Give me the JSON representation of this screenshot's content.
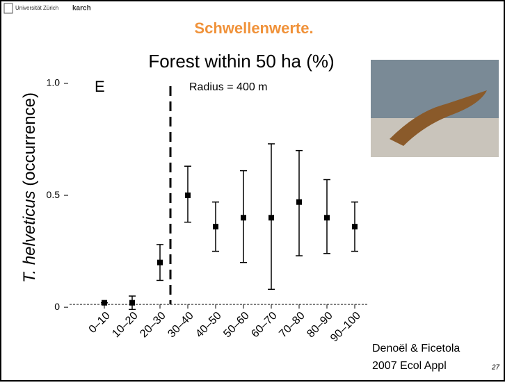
{
  "header": {
    "university": "Universität Zürich",
    "partner": "karch"
  },
  "slide_title": "Schwellenwerte.",
  "chart_data": {
    "type": "errorbar",
    "title": "Forest within 50 ha (%)",
    "panel": "E",
    "annotation": "Radius = 400 m",
    "y_label_italic": "T. helveticus",
    "y_label_rest": "(occurrence)",
    "categories": [
      "0–10",
      "10–20",
      "20–30",
      "30–40",
      "40–50",
      "50–60",
      "60–70",
      "70–80",
      "80–90",
      "90–100"
    ],
    "values": [
      0.02,
      0.02,
      0.2,
      0.5,
      0.36,
      0.4,
      0.4,
      0.47,
      0.4,
      0.36
    ],
    "lower": [
      0.02,
      -0.01,
      0.12,
      0.38,
      0.25,
      0.2,
      0.08,
      0.23,
      0.24,
      0.25
    ],
    "upper": [
      0.02,
      0.05,
      0.28,
      0.63,
      0.47,
      0.61,
      0.73,
      0.7,
      0.57,
      0.47
    ],
    "color": "#000000",
    "ylim": [
      -0.04,
      1.0
    ],
    "yticks": [
      0,
      0.5,
      {
        "value": 1.0,
        "label": "1.0"
      }
    ]
  },
  "citation": [
    "Denoël & Ficetola",
    "2007 Ecol Appl"
  ],
  "page_number": "27"
}
